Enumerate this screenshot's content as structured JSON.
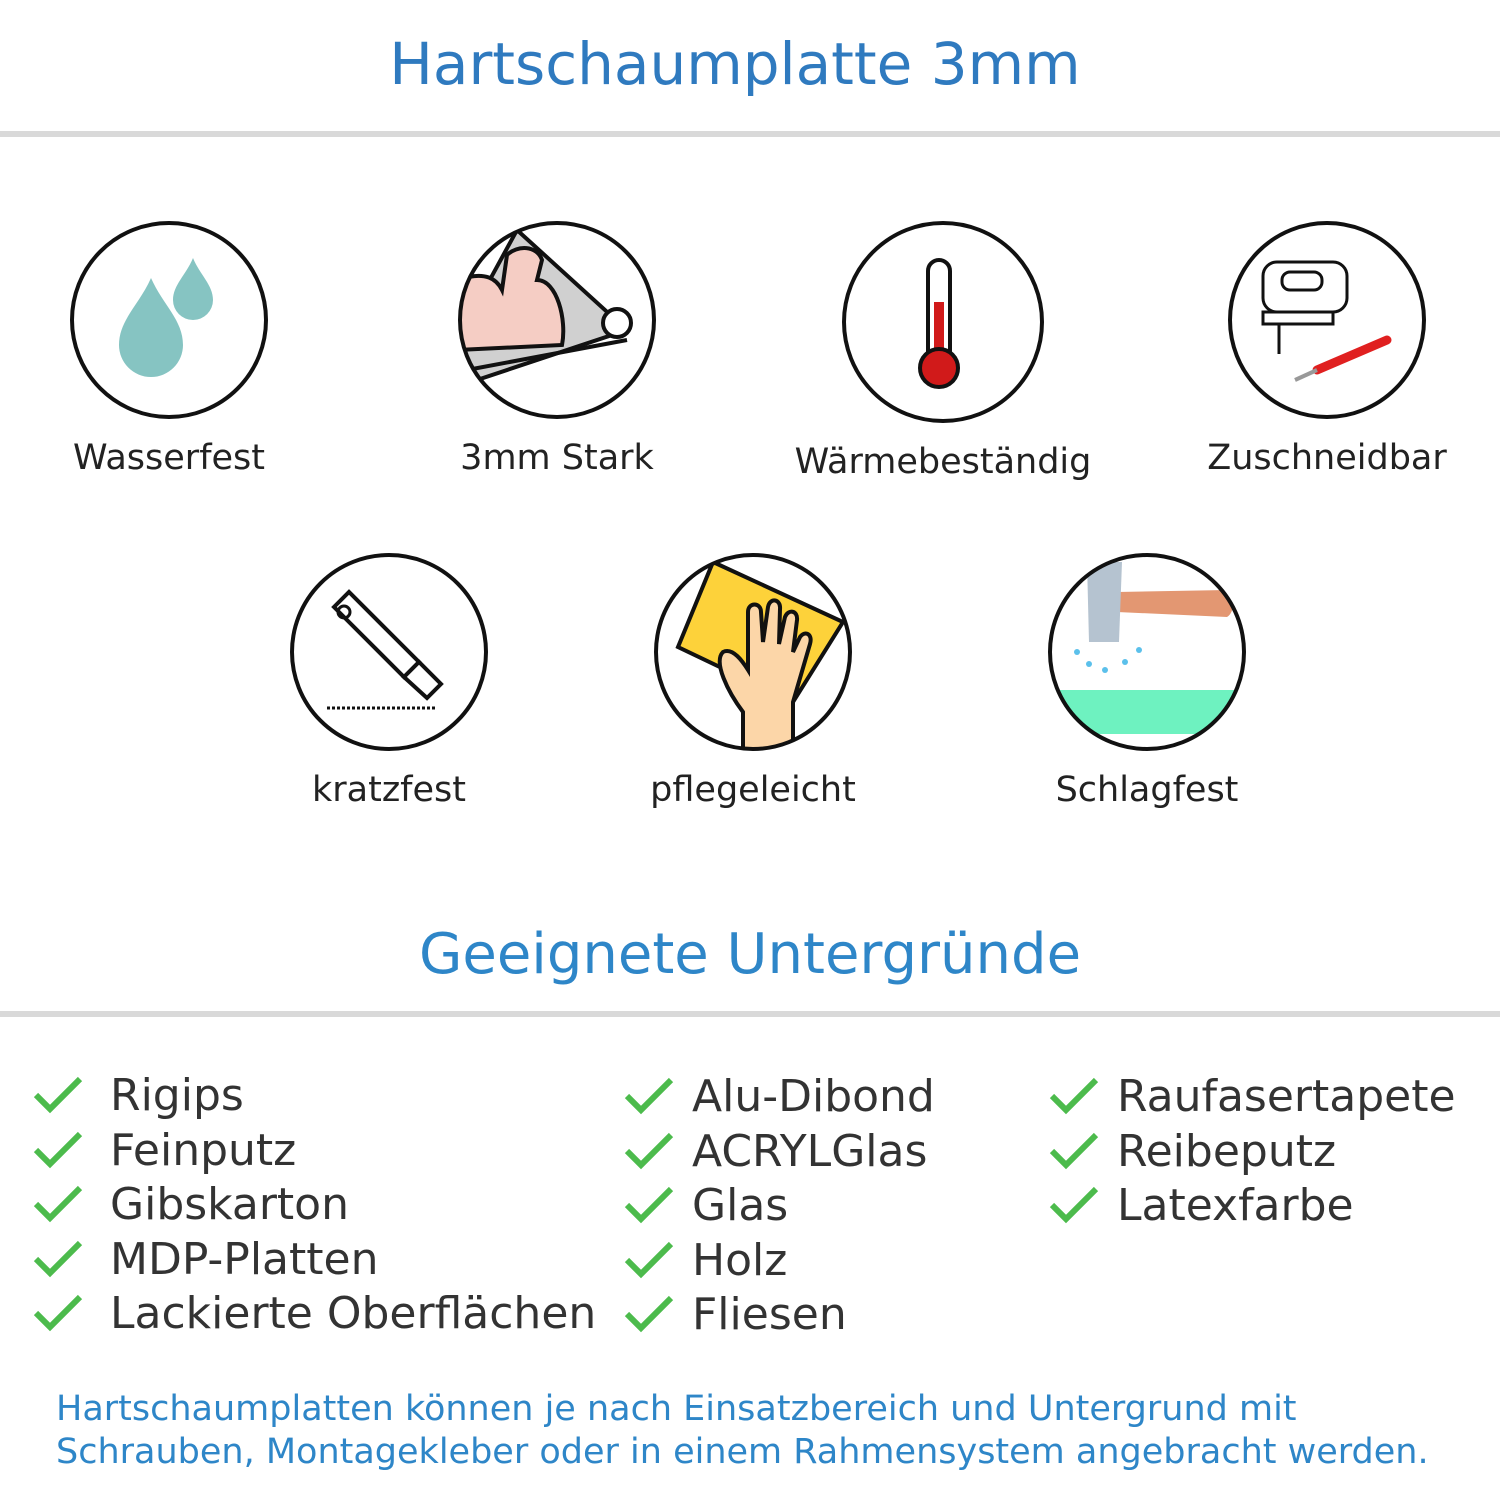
{
  "title": "Hartschaumplatte 3mm",
  "features": [
    {
      "label": "Wasserfest",
      "icon": "water-drops-icon"
    },
    {
      "label": "3mm Stark",
      "icon": "strong-arm-icon"
    },
    {
      "label": "Wärmebeständig",
      "icon": "thermometer-icon"
    },
    {
      "label": "Zuschneidbar",
      "icon": "jigsaw-cutter-icon"
    },
    {
      "label": "kratzfest",
      "icon": "utility-knife-icon"
    },
    {
      "label": "pflegeleicht",
      "icon": "cleaning-sponge-icon"
    },
    {
      "label": "Schlagfest",
      "icon": "hammer-icon"
    }
  ],
  "subtitle": "Geeignete Untergründe",
  "surfaces": {
    "col1": [
      "Rigips",
      "Feinputz",
      "Gibskarton",
      "MDP-Platten",
      "Lackierte Oberflächen"
    ],
    "col2": [
      "Alu-Dibond",
      "ACRYLGlas",
      "Glas",
      "Holz",
      "Fliesen"
    ],
    "col3": [
      "Raufasertapete",
      "Reibeputz",
      "Latexfarbe"
    ]
  },
  "footer": {
    "line1": "Hartschaumplatten können je nach Einsatzbereich und Untergrund mit",
    "line2": "Schrauben, Montagekleber oder in einem Rahmensystem angebracht werden."
  },
  "colors": {
    "title": "#2f7abf",
    "subtitle": "#2e86c8",
    "check": "#4cbb4c",
    "divider": "#d9d9d9"
  }
}
